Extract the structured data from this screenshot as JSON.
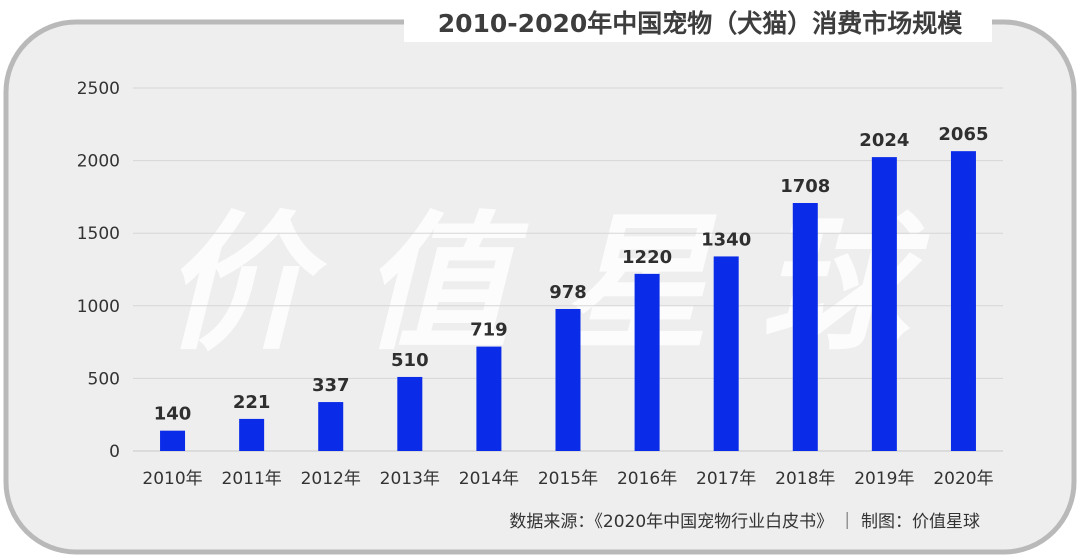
{
  "chart_data": {
    "type": "bar",
    "title": "2010-2020年中国宠物（犬猫）消费市场规模",
    "categories": [
      "2010年",
      "2011年",
      "2012年",
      "2013年",
      "2014年",
      "2015年",
      "2016年",
      "2017年",
      "2018年",
      "2019年",
      "2020年"
    ],
    "values": [
      140,
      221,
      337,
      510,
      719,
      978,
      1220,
      1340,
      1708,
      2024,
      2065
    ],
    "ylim": [
      0,
      2500
    ],
    "yticks": [
      0,
      500,
      1000,
      1500,
      2000,
      2500
    ],
    "xlabel": "",
    "ylabel": "",
    "grid": true,
    "legend": "none",
    "bar_color": "#0a2be8",
    "background_color": "#eeeeee",
    "watermark": "价 值 星 球",
    "source": "数据来源：《2020年中国宠物行业白皮书》  ｜  制图：价值星球"
  }
}
